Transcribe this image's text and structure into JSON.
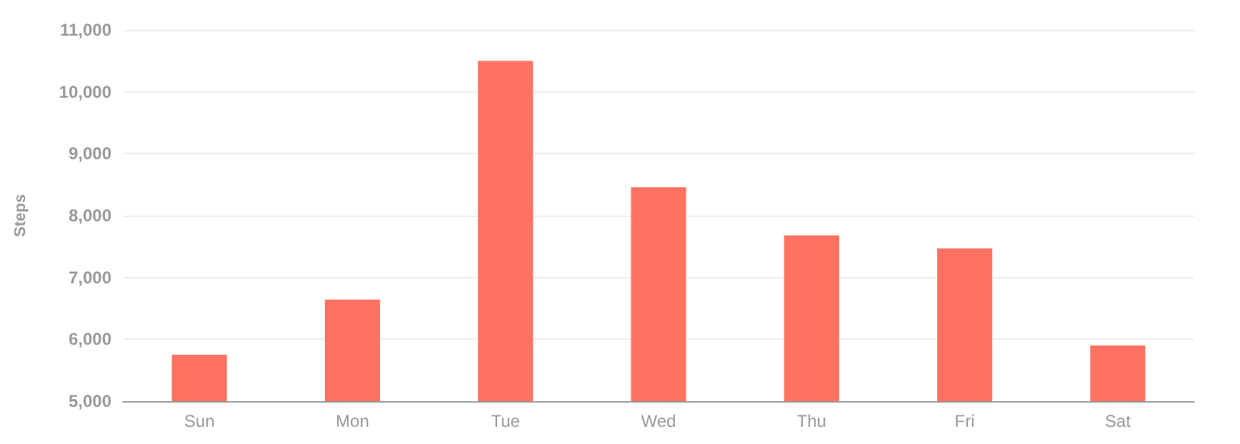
{
  "chart_data": {
    "type": "bar",
    "ylabel": "Steps",
    "categories": [
      "Sun",
      "Mon",
      "Tue",
      "Wed",
      "Thu",
      "Fri",
      "Sat"
    ],
    "values": [
      5750,
      6640,
      10500,
      8460,
      7680,
      7470,
      5900
    ],
    "color": "#ff7262",
    "ylim": [
      5000,
      11000
    ],
    "yticks": [
      {
        "value": 5000,
        "label": "5,000"
      },
      {
        "value": 6000,
        "label": "6,000"
      },
      {
        "value": 7000,
        "label": "7,000"
      },
      {
        "value": 8000,
        "label": "8,000"
      },
      {
        "value": 9000,
        "label": "9,000"
      },
      {
        "value": 10000,
        "label": "10,000"
      },
      {
        "value": 11000,
        "label": "11,000"
      }
    ],
    "grid": "y"
  }
}
